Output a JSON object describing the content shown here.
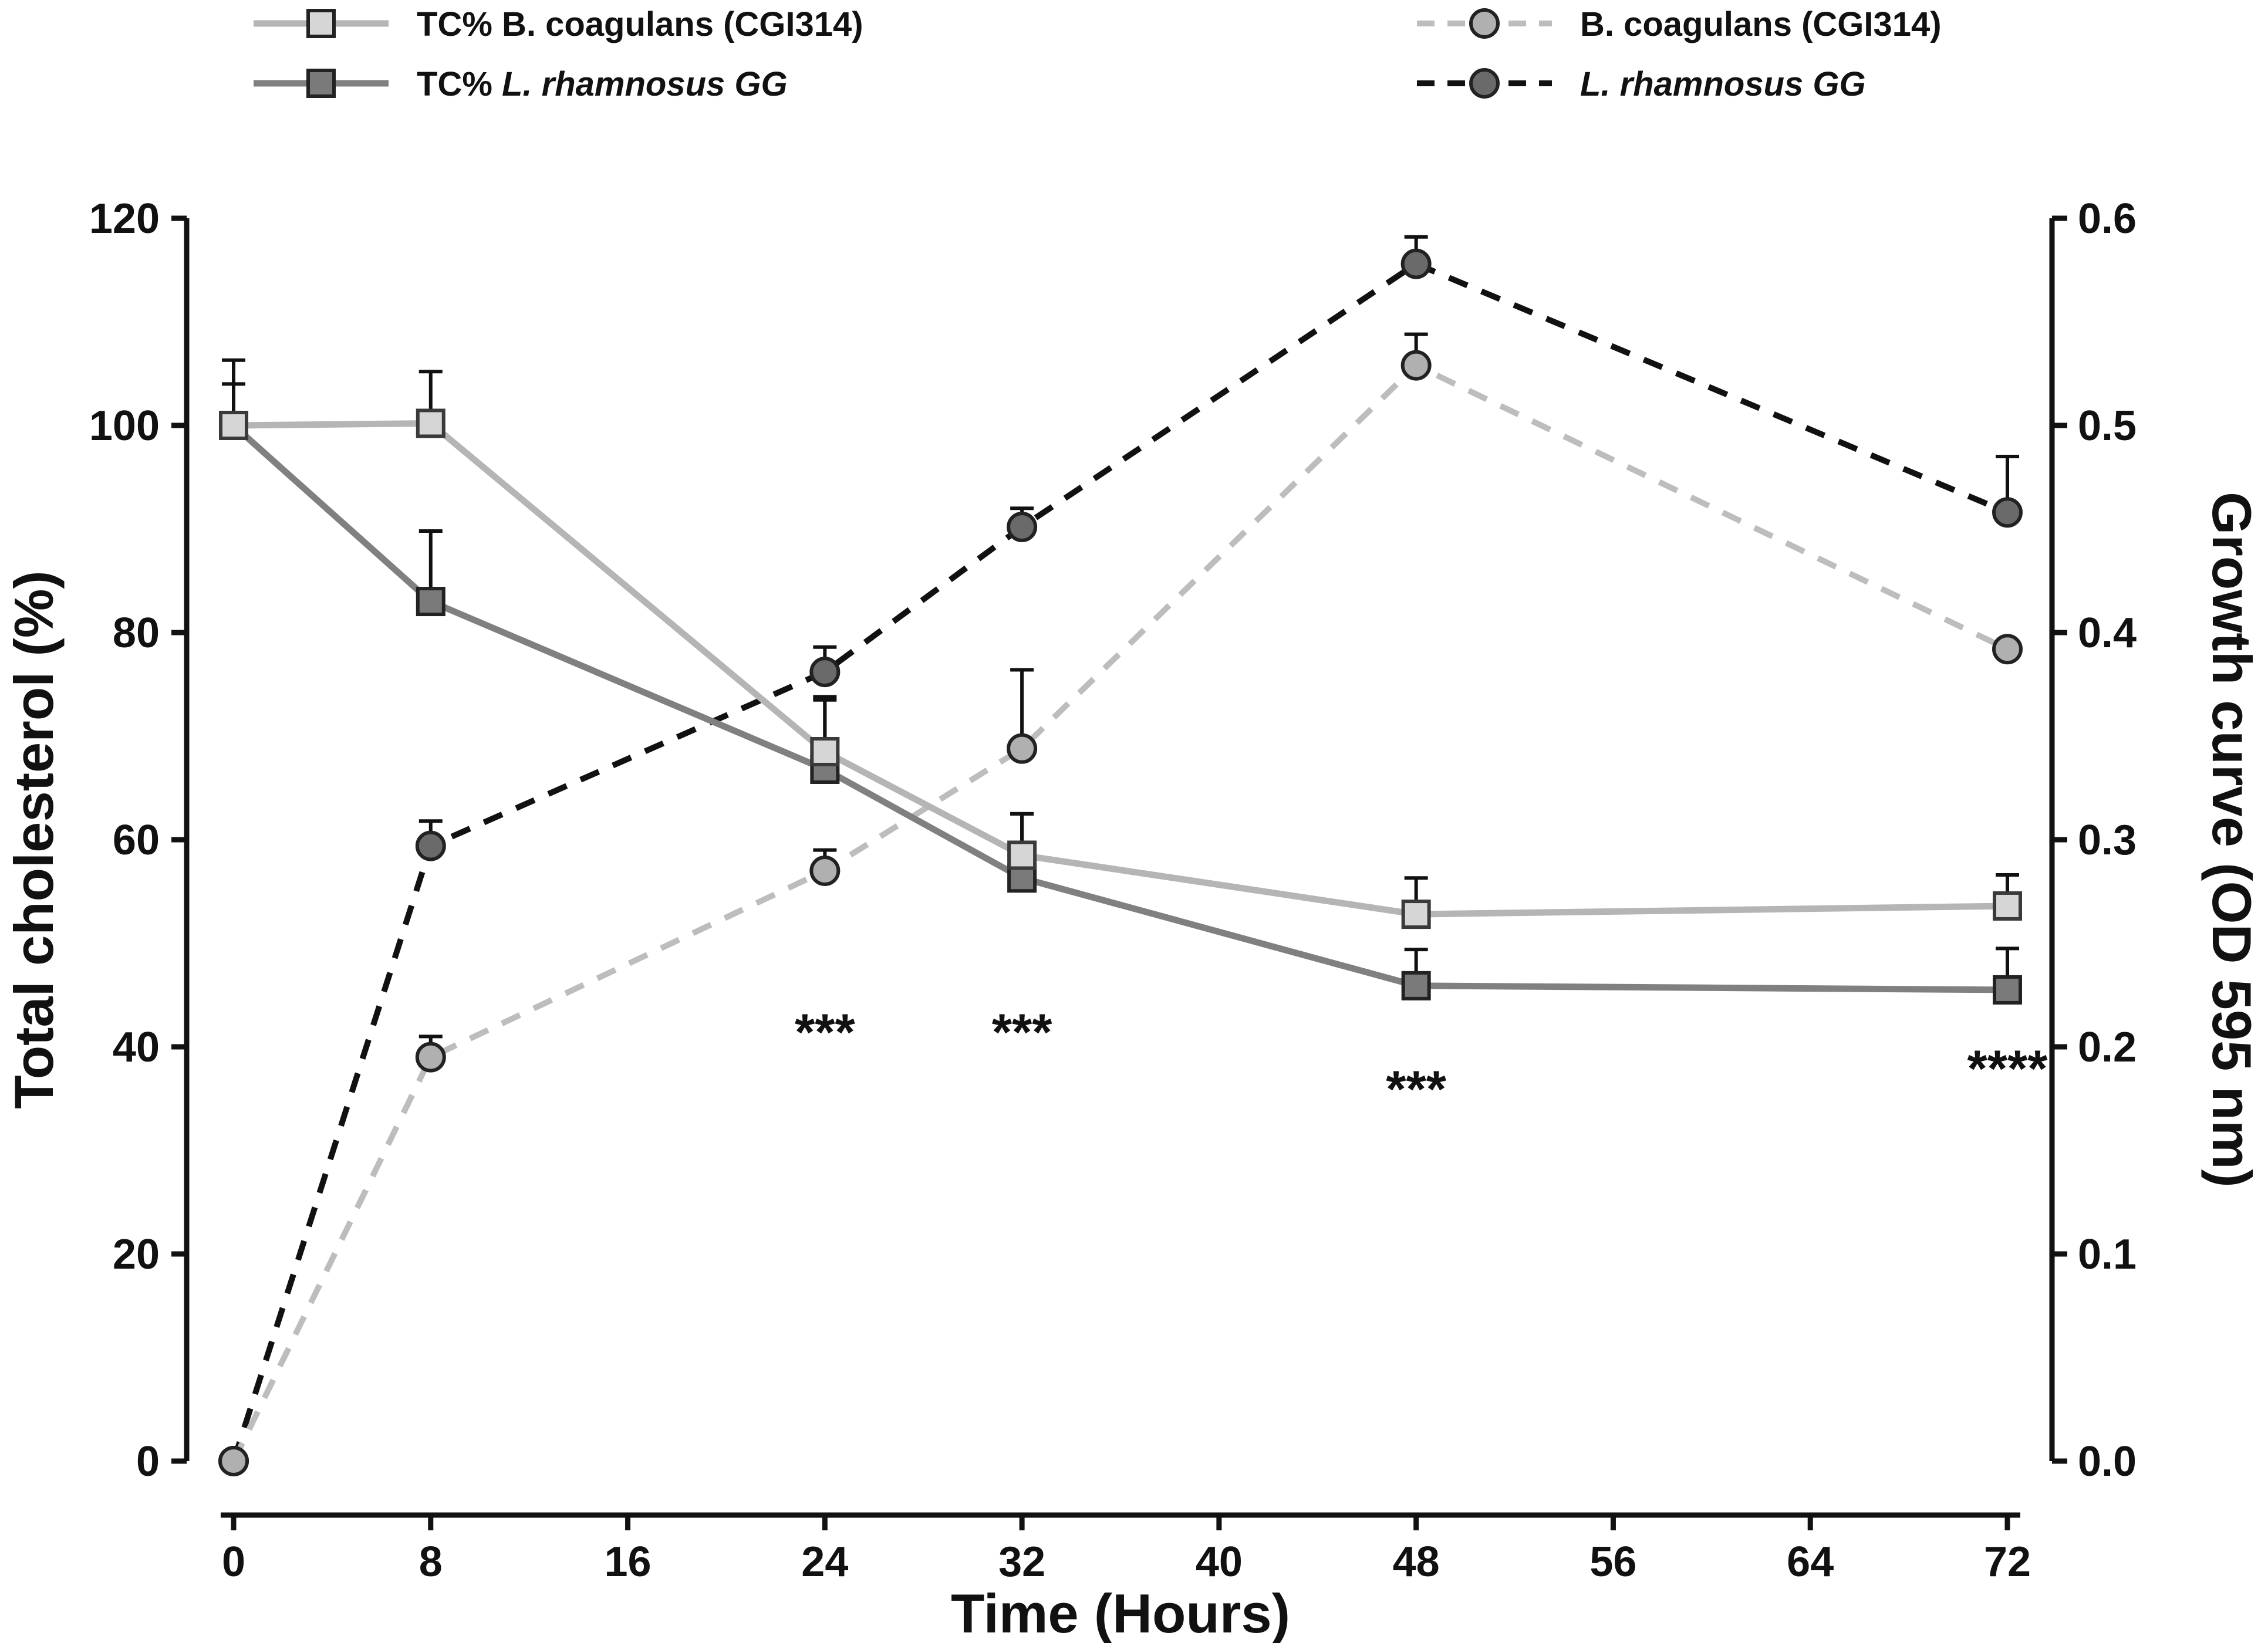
{
  "chart_data": {
    "type": "line",
    "x": [
      0,
      8,
      24,
      32,
      48,
      72
    ],
    "xlabel": "Time (Hours)",
    "xlim": [
      0,
      72
    ],
    "xticks": [
      0,
      8,
      16,
      24,
      32,
      40,
      48,
      56,
      64,
      72
    ],
    "ylabel": "Total cholesterol (%)",
    "ylim": [
      0,
      120
    ],
    "yticks": [
      0,
      20,
      40,
      60,
      80,
      100,
      120
    ],
    "y2label": "Growth curve (OD 595 nm)",
    "y2lim": [
      0,
      0.6
    ],
    "y2ticks": [
      "0.0",
      "0.1",
      "0.2",
      "0.3",
      "0.4",
      "0.5",
      "0.6"
    ],
    "legend_position": "top",
    "grid": false,
    "series": [
      {
        "name": "TC% B. coagulans (CGI314)",
        "name_parts": [
          [
            "TC% B. coagulans (CGI314)",
            false
          ]
        ],
        "axis": "left",
        "marker": "square",
        "line": "solid",
        "color": "#b5b5b5",
        "values": [
          100,
          100.2,
          68.5,
          58.5,
          52.8,
          53.6
        ],
        "errors": [
          6.3,
          5,
          5,
          4,
          3.5,
          3
        ]
      },
      {
        "name": "TC% L. rhamnosus GG",
        "name_parts": [
          [
            "TC% ",
            false
          ],
          [
            "L. rhamnosus GG",
            true
          ]
        ],
        "axis": "left",
        "marker": "square",
        "line": "solid",
        "color": "#808080",
        "values": [
          100,
          83,
          66.8,
          56.3,
          45.9,
          45.5
        ],
        "errors": [
          4,
          6.8,
          7,
          6.2,
          3.5,
          4
        ]
      },
      {
        "name": "B. coagulans (CGI314)",
        "name_parts": [
          [
            "B. coagulans (CGI314)",
            false
          ]
        ],
        "axis": "right",
        "marker": "circle",
        "line": "dashed",
        "color": "#bdbdbd",
        "values": [
          0,
          0.195,
          0.285,
          0.344,
          0.529,
          0.392
        ],
        "errors": [
          0,
          0.01,
          0.01,
          0.038,
          0.015,
          0
        ]
      },
      {
        "name": "L. rhamnosus GG",
        "name_parts": [
          [
            "L. rhamnosus GG",
            true
          ]
        ],
        "axis": "right",
        "marker": "circle",
        "line": "dashed",
        "color": "#111111",
        "values": [
          0,
          0.297,
          0.381,
          0.451,
          0.578,
          0.458
        ],
        "errors": [
          0,
          0.012,
          0.012,
          0.009,
          0.013,
          0.027
        ]
      }
    ],
    "annotations": [
      {
        "text": "***",
        "x": 24,
        "y": 43
      },
      {
        "text": "***",
        "x": 32,
        "y": 43
      },
      {
        "text": "***",
        "x": 48,
        "y": 37.5
      },
      {
        "text": "****",
        "x": 72,
        "y": 39.5
      }
    ]
  }
}
